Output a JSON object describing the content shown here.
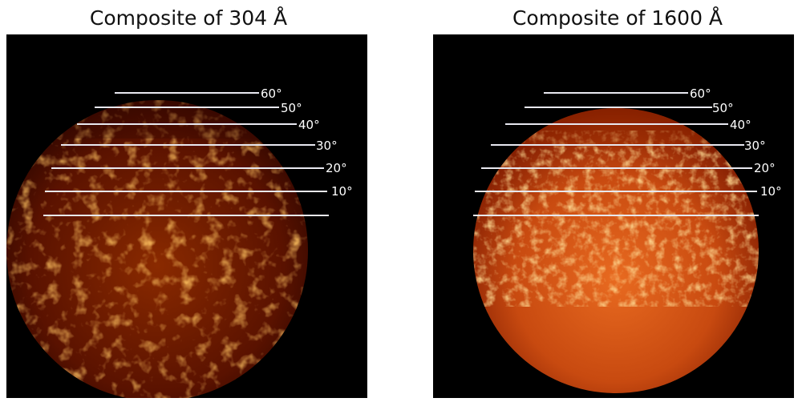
{
  "panels": [
    {
      "title": "Composite of 304 Å",
      "latitude_labels": [
        "60°",
        "50°",
        "40°",
        "30°",
        "20°",
        "10°"
      ],
      "colors": {
        "background": "#000000",
        "disk_dark": "#2a0500",
        "disk_mid": "#7a1a00",
        "bright": "#ffb040",
        "line": "#e8e8f0"
      }
    },
    {
      "title": "Composite of 1600 Å",
      "latitude_labels": [
        "60°",
        "50°",
        "40°",
        "30°",
        "20°",
        "10°"
      ],
      "colors": {
        "background": "#000000",
        "disk_dark": "#6a1400",
        "disk_mid": "#c84a10",
        "bright": "#ffd070",
        "line": "#e8e8f0"
      }
    }
  ]
}
